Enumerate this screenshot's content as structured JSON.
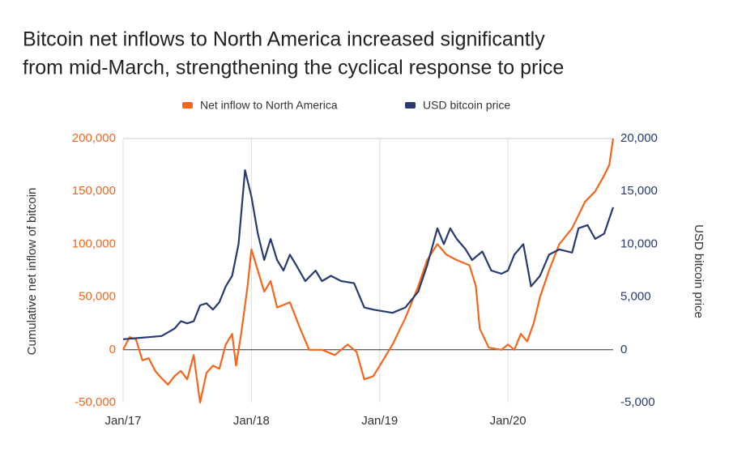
{
  "chart_data": {
    "type": "line",
    "title": [
      "Bitcoin net inflows to North America increased significantly",
      "from mid-March, strengthening the cyclical response to price"
    ],
    "ylabel": "Cumulative net inflow of bitcoin",
    "y2label": "USD bitcoin price",
    "grid": "x",
    "legend": "top",
    "xlim": [
      2017,
      2020.82
    ],
    "xticks": [
      {
        "value": 2017,
        "label": "Jan/17"
      },
      {
        "value": 2018,
        "label": "Jan/18"
      },
      {
        "value": 2019,
        "label": "Jan/19"
      },
      {
        "value": 2020,
        "label": "Jan/20"
      }
    ],
    "ylim": [
      -50000,
      200000
    ],
    "yticks": [
      {
        "value": -50000,
        "label": "-50,000"
      },
      0,
      {
        "value": 50000,
        "label": "50,000"
      },
      {
        "value": 100000,
        "label": "100,000"
      },
      {
        "value": 150000,
        "label": "150,000"
      },
      {
        "value": 200000,
        "label": "200,000"
      }
    ],
    "y2lim": [
      -5000,
      20000
    ],
    "y2ticks": [
      {
        "value": -5000,
        "label": "-5,000"
      },
      0,
      {
        "value": 5000,
        "label": "5,000"
      },
      {
        "value": 10000,
        "label": "10,000"
      },
      {
        "value": 15000,
        "label": "15,000"
      },
      {
        "value": 20000,
        "label": "20,000"
      }
    ],
    "series": [
      {
        "name": "Net inflow to North America",
        "color": "#f4661b",
        "x": [
          2017.0,
          2017.05,
          2017.1,
          2017.15,
          2017.2,
          2017.25,
          2017.3,
          2017.35,
          2017.4,
          2017.45,
          2017.5,
          2017.55,
          2017.6,
          2017.65,
          2017.7,
          2017.75,
          2017.8,
          2017.85,
          2017.88,
          2017.92,
          2017.97,
          2018.0,
          2018.05,
          2018.1,
          2018.15,
          2018.2,
          2018.3,
          2018.38,
          2018.45,
          2018.55,
          2018.65,
          2018.75,
          2018.82,
          2018.88,
          2018.95,
          2019.0,
          2019.1,
          2019.2,
          2019.3,
          2019.37,
          2019.45,
          2019.52,
          2019.6,
          2019.7,
          2019.75,
          2019.78,
          2019.85,
          2019.95,
          2020.0,
          2020.05,
          2020.1,
          2020.15,
          2020.2,
          2020.25,
          2020.32,
          2020.4,
          2020.5,
          2020.6,
          2020.68,
          2020.75,
          2020.79,
          2020.82
        ],
        "values": [
          0,
          12000,
          10000,
          -10000,
          -8000,
          -20000,
          -27000,
          -33000,
          -25000,
          -20000,
          -28000,
          -5000,
          -50000,
          -22000,
          -15000,
          -18000,
          5000,
          15000,
          -15000,
          15000,
          60000,
          95000,
          75000,
          55000,
          65000,
          40000,
          45000,
          20000,
          0,
          0,
          -5000,
          5000,
          -2000,
          -28000,
          -25000,
          -15000,
          5000,
          30000,
          60000,
          85000,
          100000,
          90000,
          85000,
          80000,
          60000,
          20000,
          2000,
          0,
          5000,
          0,
          15000,
          8000,
          25000,
          50000,
          75000,
          100000,
          115000,
          140000,
          150000,
          165000,
          175000,
          200000
        ]
      },
      {
        "name": "USD bitcoin price",
        "color": "#283a70",
        "axis": "y2",
        "x": [
          2017.0,
          2017.1,
          2017.2,
          2017.3,
          2017.4,
          2017.45,
          2017.5,
          2017.55,
          2017.6,
          2017.65,
          2017.7,
          2017.75,
          2017.8,
          2017.85,
          2017.9,
          2017.95,
          2018.0,
          2018.05,
          2018.1,
          2018.15,
          2018.2,
          2018.25,
          2018.3,
          2018.35,
          2018.42,
          2018.5,
          2018.55,
          2018.62,
          2018.7,
          2018.8,
          2018.88,
          2018.95,
          2019.0,
          2019.1,
          2019.2,
          2019.3,
          2019.37,
          2019.45,
          2019.5,
          2019.55,
          2019.6,
          2019.67,
          2019.72,
          2019.8,
          2019.87,
          2019.95,
          2020.0,
          2020.05,
          2020.12,
          2020.18,
          2020.25,
          2020.32,
          2020.4,
          2020.5,
          2020.55,
          2020.62,
          2020.68,
          2020.75,
          2020.82
        ],
        "values": [
          1000,
          1100,
          1200,
          1300,
          2000,
          2700,
          2500,
          2700,
          4200,
          4400,
          3800,
          4500,
          6000,
          7000,
          10000,
          17000,
          14500,
          11000,
          8500,
          10500,
          8500,
          7500,
          9000,
          8000,
          6500,
          7500,
          6500,
          7000,
          6500,
          6300,
          4000,
          3800,
          3700,
          3500,
          4000,
          5500,
          8000,
          11500,
          10000,
          11500,
          10500,
          9500,
          8500,
          9300,
          7500,
          7200,
          7500,
          9000,
          10000,
          6000,
          7000,
          9000,
          9500,
          9200,
          11500,
          11800,
          10500,
          11000,
          13500
        ]
      }
    ]
  }
}
